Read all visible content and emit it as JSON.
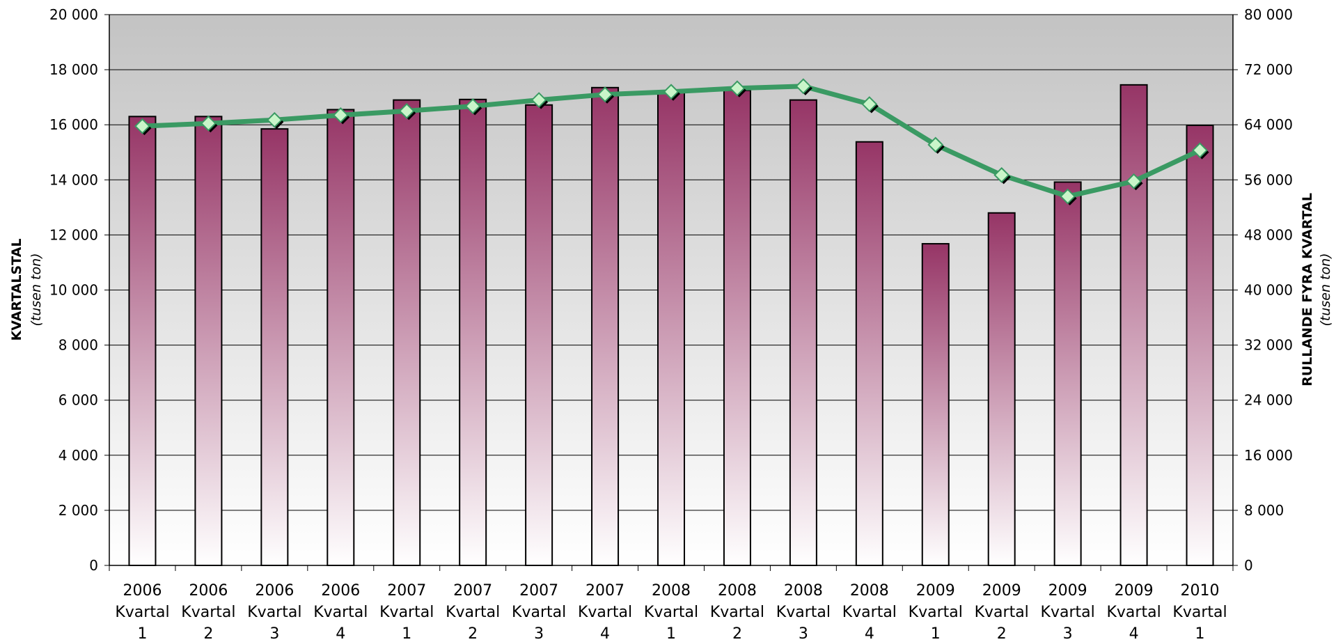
{
  "chart_data": {
    "type": "bar",
    "categories": [
      [
        "2006",
        "Kvartal",
        "1"
      ],
      [
        "2006",
        "Kvartal",
        "2"
      ],
      [
        "2006",
        "Kvartal",
        "3"
      ],
      [
        "2006",
        "Kvartal",
        "4"
      ],
      [
        "2007",
        "Kvartal",
        "1"
      ],
      [
        "2007",
        "Kvartal",
        "2"
      ],
      [
        "2007",
        "Kvartal",
        "3"
      ],
      [
        "2007",
        "Kvartal",
        "4"
      ],
      [
        "2008",
        "Kvartal",
        "1"
      ],
      [
        "2008",
        "Kvartal",
        "2"
      ],
      [
        "2008",
        "Kvartal",
        "3"
      ],
      [
        "2008",
        "Kvartal",
        "4"
      ],
      [
        "2009",
        "Kvartal",
        "1"
      ],
      [
        "2009",
        "Kvartal",
        "2"
      ],
      [
        "2009",
        "Kvartal",
        "3"
      ],
      [
        "2009",
        "Kvartal",
        "4"
      ],
      [
        "2010",
        "Kvartal",
        "1"
      ]
    ],
    "series": [
      {
        "type": "bar",
        "axis": "left",
        "values": [
          16300,
          16300,
          15850,
          16550,
          16900,
          16920,
          16720,
          17350,
          17200,
          17250,
          16900,
          15380,
          11680,
          12800,
          13920,
          17450,
          15980
        ],
        "color_top": "#963566",
        "color_bottom": "#ffffff"
      },
      {
        "type": "line",
        "axis": "right",
        "values": [
          63800,
          64200,
          64700,
          65400,
          66000,
          66700,
          67600,
          68400,
          68800,
          69300,
          69600,
          67000,
          61100,
          56700,
          53600,
          55800,
          60300
        ],
        "color": "#3a9a63",
        "marker_color": "#c9f5c9"
      }
    ],
    "left_axis": {
      "title": "KVARTALSTAL",
      "unit": "(tusen ton)",
      "ylim": [
        0,
        20000
      ],
      "ticks": [
        0,
        2000,
        4000,
        6000,
        8000,
        10000,
        12000,
        14000,
        16000,
        18000,
        20000
      ],
      "tick_labels": [
        "0",
        "2 000",
        "4 000",
        "6 000",
        "8 000",
        "10 000",
        "12 000",
        "14 000",
        "16 000",
        "18 000",
        "20 000"
      ]
    },
    "right_axis": {
      "title": "RULLANDE FYRA KVARTAL",
      "unit": "(tusen ton)",
      "ylim": [
        0,
        80000
      ],
      "ticks": [
        0,
        8000,
        16000,
        24000,
        32000,
        40000,
        48000,
        56000,
        64000,
        72000,
        80000
      ],
      "tick_labels": [
        "0",
        "8 000",
        "16 000",
        "24 000",
        "32 000",
        "40 000",
        "48 000",
        "56 000",
        "64 000",
        "72 000",
        "80 000"
      ]
    },
    "grid": true,
    "legend": "none"
  }
}
